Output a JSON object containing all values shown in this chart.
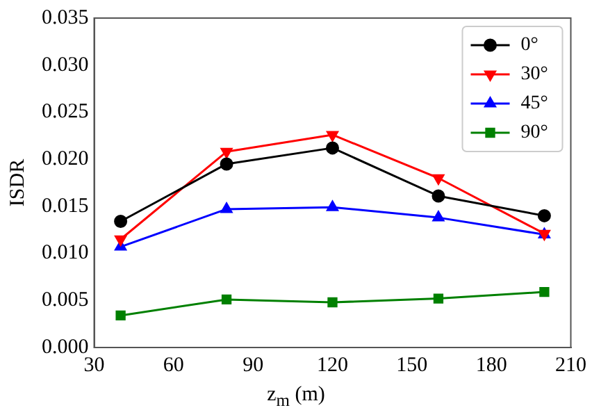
{
  "chart_data": {
    "type": "line",
    "xlabel": "z$_{m}$ (m)",
    "ylabel": "ISDR",
    "x": [
      40,
      80,
      120,
      160,
      200
    ],
    "series": [
      {
        "name": "0°",
        "color": "#000000",
        "marker": "circle",
        "values": [
          0.0134,
          0.0195,
          0.0212,
          0.0161,
          0.014
        ]
      },
      {
        "name": "30°",
        "color": "#ff0000",
        "marker": "triangle-down",
        "values": [
          0.0115,
          0.0208,
          0.0226,
          0.018,
          0.0121
        ]
      },
      {
        "name": "45°",
        "color": "#0000ff",
        "marker": "triangle",
        "values": [
          0.0107,
          0.0147,
          0.0149,
          0.0138,
          0.012
        ]
      },
      {
        "name": "90°",
        "color": "#008000",
        "marker": "square",
        "values": [
          0.0034,
          0.0051,
          0.0048,
          0.0052,
          0.0059
        ]
      }
    ],
    "xlim": [
      30,
      210
    ],
    "xticks": [
      30,
      60,
      90,
      120,
      150,
      180,
      210
    ],
    "ylim": [
      0,
      0.035
    ],
    "yticks": [
      {
        "value": 0,
        "label": "0.000"
      },
      {
        "value": 0.005,
        "label": "0.005"
      },
      {
        "value": 0.01,
        "label": "0.010"
      },
      {
        "value": 0.015,
        "label": "0.015"
      },
      {
        "value": 0.02,
        "label": "0.020"
      },
      {
        "value": 0.025,
        "label": "0.025"
      },
      {
        "value": 0.03,
        "label": "0.030"
      },
      {
        "value": 0.035,
        "label": "0.035"
      }
    ],
    "legend": "top right",
    "grid": false,
    "line_style": "solid"
  }
}
